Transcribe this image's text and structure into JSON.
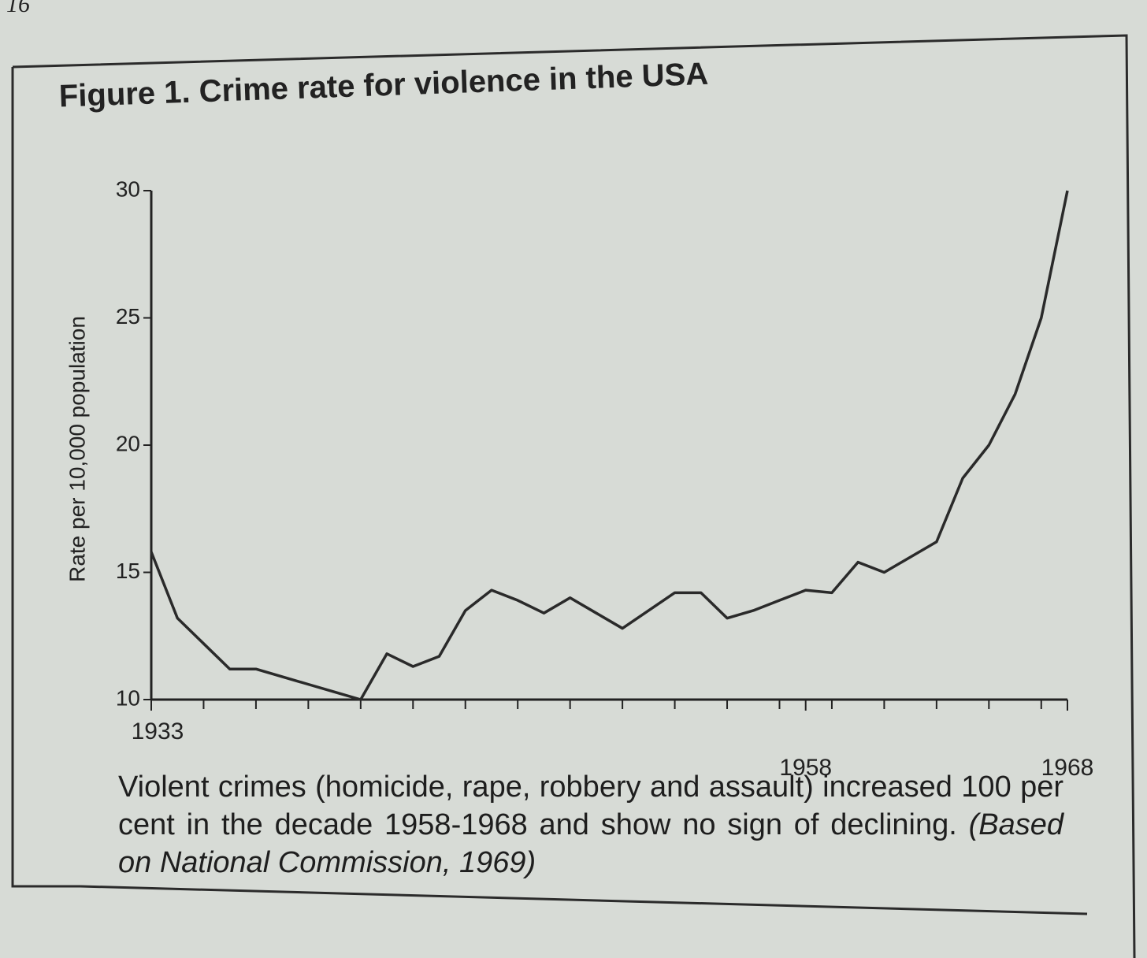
{
  "page_number": "16",
  "chart_data": {
    "type": "line",
    "title": "Figure 1. Crime rate for violence in the USA",
    "y_label": "Rate per 10,000 population",
    "x": [
      1933,
      1934,
      1935,
      1936,
      1937,
      1938,
      1939,
      1940,
      1941,
      1942,
      1943,
      1944,
      1945,
      1946,
      1947,
      1948,
      1949,
      1950,
      1951,
      1952,
      1953,
      1954,
      1955,
      1956,
      1957,
      1958,
      1959,
      1960,
      1961,
      1962,
      1963,
      1964,
      1965,
      1966,
      1967,
      1968
    ],
    "values": [
      15.8,
      13.2,
      12.2,
      11.2,
      11.2,
      10.9,
      10.6,
      10.3,
      10.0,
      11.8,
      11.3,
      11.7,
      13.5,
      14.3,
      13.9,
      13.4,
      14.0,
      13.4,
      12.8,
      13.5,
      14.2,
      14.2,
      13.2,
      13.5,
      13.9,
      14.3,
      14.2,
      15.4,
      15.0,
      15.6,
      16.2,
      18.7,
      20.0,
      22.0,
      25.0,
      30.0
    ],
    "color": "#2a2a2a",
    "xlim": [
      1933,
      1968
    ],
    "xticks": [
      1933,
      1958,
      1968
    ],
    "x_minor_ticks": [
      1935,
      1937,
      1939,
      1941,
      1943,
      1945,
      1947,
      1949,
      1951,
      1953,
      1955,
      1957,
      1959,
      1961,
      1963,
      1965,
      1967
    ],
    "ylim": [
      10,
      30
    ],
    "yticks": [
      10,
      15,
      20,
      25,
      30
    ],
    "grid": false,
    "caption": "Violent crimes (homicide, rape, robbery and assault) increased 100 per cent in the decade 1958-1968 and show no sign of declining.",
    "source": "(Based on National Commission, 1969)"
  }
}
